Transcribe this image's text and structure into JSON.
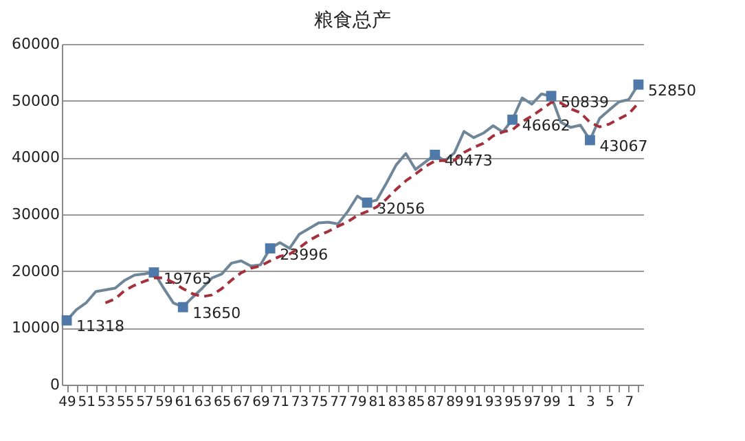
{
  "chart_data": {
    "type": "line",
    "title": "粮食总产",
    "categories": [
      "49",
      null,
      "51",
      null,
      "53",
      null,
      "55",
      null,
      "57",
      null,
      "59",
      null,
      "61",
      null,
      "63",
      null,
      "65",
      null,
      "67",
      null,
      "69",
      null,
      "71",
      null,
      "73",
      null,
      "75",
      null,
      "77",
      null,
      "79",
      null,
      "81",
      null,
      "83",
      null,
      "85",
      null,
      "87",
      null,
      "89",
      null,
      "91",
      null,
      "93",
      null,
      "95",
      null,
      "97",
      null,
      "99",
      null,
      "1",
      null,
      "3",
      null,
      "5",
      null,
      "7",
      null
    ],
    "series": [
      {
        "type": "line",
        "color": "#6f8699",
        "values": [
          11300,
          13200,
          14400,
          16400,
          16700,
          17000,
          18400,
          19300,
          19500,
          19800,
          17000,
          14400,
          13700,
          15400,
          17000,
          18800,
          19500,
          21400,
          21800,
          20900,
          21100,
          24000,
          25000,
          24000,
          26500,
          27500,
          28500,
          28600,
          28300,
          30500,
          33200,
          32100,
          32500,
          35500,
          38700,
          40700,
          37900,
          39200,
          40500,
          39400,
          40800,
          44600,
          43500,
          44300,
          45600,
          44500,
          46700,
          50500,
          49400,
          51200,
          50800,
          46200,
          45300,
          45700,
          43100,
          46900,
          48400,
          49800,
          50200,
          52900
        ]
      },
      {
        "type": "scatter",
        "marker": "square",
        "color": "#4f79a8",
        "values": [
          11318,
          null,
          null,
          null,
          null,
          null,
          null,
          null,
          null,
          19765,
          null,
          null,
          13650,
          null,
          null,
          null,
          null,
          null,
          null,
          null,
          null,
          23996,
          null,
          null,
          null,
          null,
          null,
          null,
          null,
          null,
          null,
          32056,
          null,
          null,
          null,
          null,
          null,
          null,
          40473,
          null,
          null,
          null,
          null,
          null,
          null,
          null,
          46662,
          null,
          null,
          null,
          50839,
          null,
          null,
          null,
          43067,
          null,
          null,
          null,
          null,
          52850
        ],
        "value_labels": [
          "11318",
          null,
          null,
          null,
          null,
          null,
          null,
          null,
          null,
          "19765",
          null,
          null,
          "13650",
          null,
          null,
          null,
          null,
          null,
          null,
          null,
          null,
          "23996",
          null,
          null,
          null,
          null,
          null,
          null,
          null,
          null,
          null,
          "32056",
          null,
          null,
          null,
          null,
          null,
          null,
          "40473",
          null,
          null,
          null,
          null,
          null,
          null,
          null,
          "46662",
          null,
          null,
          null,
          "50839",
          null,
          null,
          null,
          "43067",
          null,
          null,
          null,
          null,
          "52850"
        ]
      },
      {
        "type": "line",
        "color": "#a3303b",
        "line_style": "dashed",
        "values": [
          null,
          null,
          null,
          null,
          14400,
          15100,
          16600,
          17500,
          18200,
          18800,
          18800,
          18000,
          16900,
          16000,
          15500,
          15800,
          16900,
          18400,
          19700,
          20500,
          20900,
          21800,
          22600,
          23000,
          24100,
          25400,
          26300,
          27000,
          27900,
          28700,
          29800,
          30500,
          31300,
          32700,
          34400,
          35900,
          37100,
          38400,
          39400,
          39500,
          39500,
          40900,
          41800,
          42500,
          43800,
          44500,
          44900,
          46300,
          47300,
          48500,
          49700,
          49600,
          48600,
          47900,
          46200,
          45400,
          45900,
          46800,
          47700,
          49600
        ]
      }
    ],
    "ylim": [
      0,
      60000
    ],
    "yticks": [
      0,
      10000,
      20000,
      30000,
      40000,
      50000,
      60000
    ],
    "grid": "y"
  }
}
